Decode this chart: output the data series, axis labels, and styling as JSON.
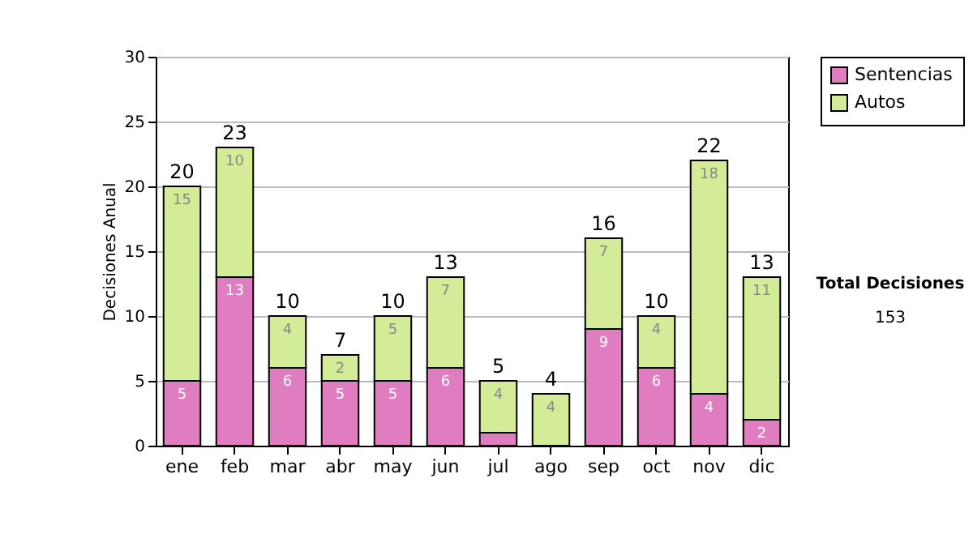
{
  "chart_data": {
    "type": "bar",
    "stacked": true,
    "ylabel": "Decisiones Anual",
    "categories": [
      "ene",
      "feb",
      "mar",
      "abr",
      "may",
      "jun",
      "jul",
      "ago",
      "sep",
      "oct",
      "nov",
      "dic"
    ],
    "series": [
      {
        "name": "Sentencias",
        "color": "#e07cc0",
        "values": [
          5,
          13,
          6,
          5,
          5,
          6,
          1,
          0,
          9,
          6,
          4,
          2
        ],
        "value_labels": [
          "5",
          "13",
          "6",
          "5",
          "5",
          "6",
          null,
          null,
          "9",
          "6",
          "4",
          "2"
        ]
      },
      {
        "name": "Autos",
        "color": "#d4ec98",
        "values": [
          15,
          10,
          4,
          2,
          5,
          7,
          4,
          4,
          7,
          4,
          18,
          11
        ],
        "value_labels": [
          "15",
          "10",
          "4",
          "2",
          "5",
          "7",
          "4",
          "4",
          "7",
          "4",
          "18",
          "11"
        ]
      }
    ],
    "totals": [
      "20",
      "23",
      "10",
      "7",
      "10",
      "13",
      "5",
      "4",
      "16",
      "10",
      "22",
      "13"
    ],
    "ylim": [
      0,
      30
    ],
    "yticks": [
      0,
      5,
      10,
      15,
      20,
      25,
      30
    ],
    "grid": "y",
    "legend": "right",
    "annotations": [
      "Total Decisiones",
      "153"
    ]
  }
}
